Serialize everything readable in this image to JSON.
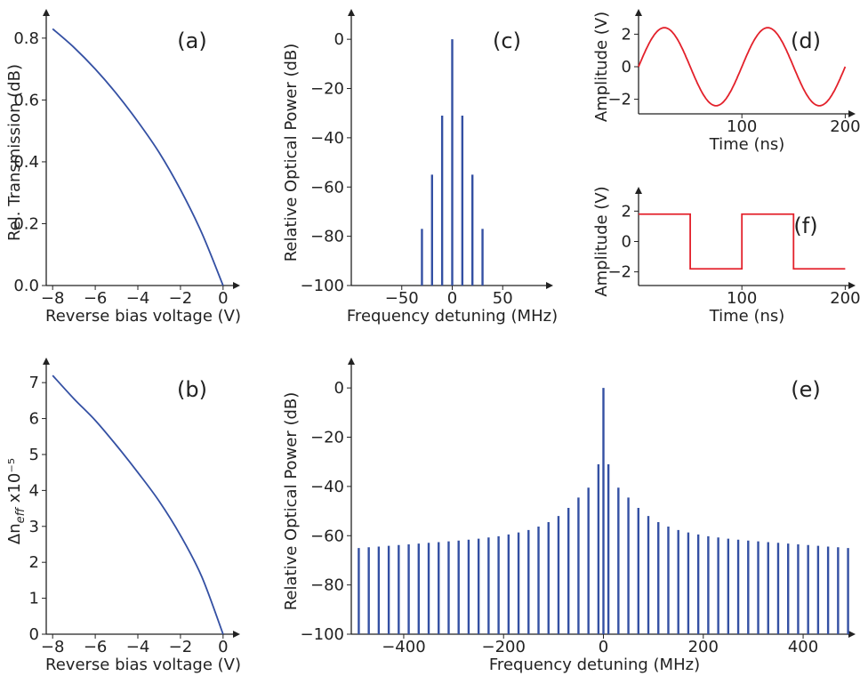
{
  "chart_data": [
    {
      "id": "a",
      "type": "line",
      "panel_label": "(a)",
      "xlabel": "Reverse bias voltage (V)",
      "ylabel": "Rel. Transmission (dB)",
      "xlim": [
        -8.3,
        0.8
      ],
      "ylim": [
        0,
        0.86
      ],
      "xticks": [
        -8,
        -6,
        -4,
        -2,
        0
      ],
      "xticklabels": [
        "−8",
        "−6",
        "−4",
        "−2",
        "0"
      ],
      "yticks": [
        0,
        0.2,
        0.4,
        0.6,
        0.8
      ],
      "yticklabels": [
        "0.0",
        "0.2",
        "0.4",
        "0.6",
        "0.8"
      ],
      "color": "#3450a3",
      "x": [
        -8,
        -7,
        -6,
        -5,
        -4,
        -3,
        -2,
        -1,
        0
      ],
      "y": [
        0.83,
        0.77,
        0.7,
        0.62,
        0.53,
        0.43,
        0.31,
        0.17,
        0.0
      ]
    },
    {
      "id": "b",
      "type": "line",
      "panel_label": "(b)",
      "xlabel": "Reverse bias voltage (V)",
      "ylabel": "Δn_eff x10⁻⁵",
      "xlim": [
        -8.3,
        0.8
      ],
      "ylim": [
        0,
        7.4
      ],
      "xticks": [
        -8,
        -6,
        -4,
        -2,
        0
      ],
      "xticklabels": [
        "−8",
        "−6",
        "−4",
        "−2",
        "0"
      ],
      "yticks": [
        0,
        1,
        2,
        3,
        4,
        5,
        6,
        7
      ],
      "yticklabels": [
        "0",
        "1",
        "2",
        "3",
        "4",
        "5",
        "6",
        "7"
      ],
      "color": "#3450a3",
      "x": [
        -8,
        -7,
        -6,
        -5,
        -4,
        -3,
        -2,
        -1,
        0
      ],
      "y": [
        7.2,
        6.55,
        5.95,
        5.25,
        4.5,
        3.7,
        2.75,
        1.6,
        0.0
      ]
    },
    {
      "id": "c",
      "type": "bar",
      "panel_label": "(c)",
      "xlabel": "Frequency detuning (MHz)",
      "ylabel": "Relative Optical Power (dB)",
      "xlim": [
        -100,
        100
      ],
      "ylim": [
        -100,
        8
      ],
      "xticks": [
        -50,
        0,
        50
      ],
      "xticklabels": [
        "−50",
        "0",
        "50"
      ],
      "yticks": [
        -100,
        -80,
        -60,
        -40,
        -20,
        0
      ],
      "yticklabels": [
        "−100",
        "−80",
        "−60",
        "−40",
        "−20",
        "0"
      ],
      "color": "#3450a3",
      "x": [
        -30,
        -20,
        -10,
        0,
        10,
        20,
        30
      ],
      "y": [
        -77,
        -55,
        -31,
        0,
        -31,
        -55,
        -77
      ]
    },
    {
      "id": "d",
      "type": "line",
      "panel_label": "(d)",
      "xlabel": "Time (ns)",
      "ylabel": "Amplitude (V)",
      "xlim": [
        0,
        210
      ],
      "ylim": [
        -2.9,
        2.9
      ],
      "xticks": [
        100,
        200
      ],
      "xticklabels": [
        "100",
        "200"
      ],
      "yticks": [
        -2,
        0,
        2
      ],
      "yticklabels": [
        "−2",
        "0",
        "2"
      ],
      "color": "#e3212b",
      "x": [
        0,
        25,
        50,
        75,
        100,
        125,
        150,
        175,
        200
      ],
      "y": [
        0,
        2.4,
        0,
        -2.4,
        0,
        2.4,
        0,
        -2.4,
        0
      ]
    },
    {
      "id": "f",
      "type": "line",
      "panel_label": "(f)",
      "xlabel": "Time (ns)",
      "ylabel": "Amplitude (V)",
      "xlim": [
        0,
        210
      ],
      "ylim": [
        -2.9,
        2.9
      ],
      "xticks": [
        100,
        200
      ],
      "xticklabels": [
        "100",
        "200"
      ],
      "yticks": [
        -2,
        0,
        2
      ],
      "yticklabels": [
        "−2",
        "0",
        "2"
      ],
      "color": "#e3212b",
      "x": [
        0,
        50,
        50,
        100,
        100,
        150,
        150,
        200
      ],
      "y": [
        1.8,
        1.8,
        -1.8,
        -1.8,
        1.8,
        1.8,
        -1.8,
        -1.8
      ]
    },
    {
      "id": "e",
      "type": "bar",
      "panel_label": "(e)",
      "xlabel": "Frequency detuning (MHz)",
      "ylabel": "Relative Optical Power (dB)",
      "xlim": [
        -505,
        505
      ],
      "ylim": [
        -100,
        8
      ],
      "xticks": [
        -400,
        -200,
        0,
        200,
        400
      ],
      "xticklabels": [
        "−400",
        "−200",
        "0",
        "200",
        "400"
      ],
      "yticks": [
        -100,
        -80,
        -60,
        -40,
        -20,
        0
      ],
      "yticklabels": [
        "−100",
        "−80",
        "−60",
        "−40",
        "−20",
        "0"
      ],
      "color": "#3450a3",
      "x": [
        -490,
        -470,
        -450,
        -430,
        -410,
        -390,
        -370,
        -350,
        -330,
        -310,
        -290,
        -270,
        -250,
        -230,
        -210,
        -190,
        -170,
        -150,
        -130,
        -110,
        -90,
        -70,
        -50,
        -30,
        -10,
        0,
        10,
        30,
        50,
        70,
        90,
        110,
        130,
        150,
        170,
        190,
        210,
        230,
        250,
        270,
        290,
        310,
        330,
        350,
        370,
        390,
        410,
        430,
        450,
        470,
        490
      ],
      "y": [
        -65,
        -64.7,
        -64.4,
        -64.1,
        -63.8,
        -63.5,
        -63.2,
        -62.9,
        -62.6,
        -62.3,
        -62,
        -61.6,
        -61.2,
        -60.7,
        -60.2,
        -59.5,
        -58.7,
        -57.7,
        -56.3,
        -54.5,
        -52,
        -48.7,
        -44.5,
        -40.5,
        -31,
        0,
        -31,
        -40.5,
        -44.5,
        -48.7,
        -52,
        -54.5,
        -56.3,
        -57.7,
        -58.7,
        -59.5,
        -60.2,
        -60.7,
        -61.2,
        -61.6,
        -62,
        -62.3,
        -62.6,
        -62.9,
        -63.2,
        -63.5,
        -63.8,
        -64.1,
        -64.4,
        -64.7,
        -65
      ]
    }
  ]
}
